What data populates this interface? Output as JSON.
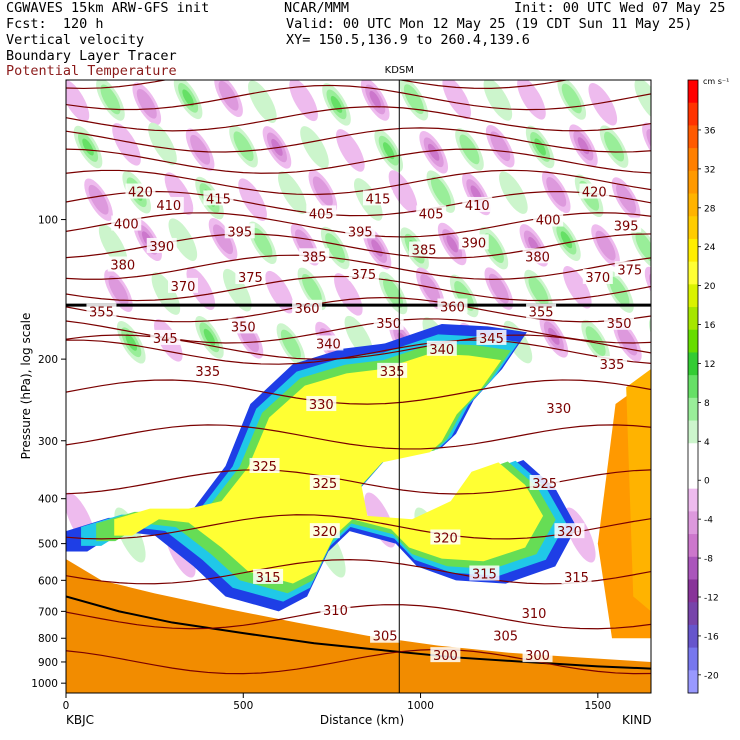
{
  "header": {
    "line1_left": "CGWAVES 15km ARW-GFS init",
    "line1_mid": "NCAR/MMM",
    "line1_right": "Init: 00 UTC Wed 07 May 25",
    "line2_left": "Fcst:  120 h",
    "line2_right": "Valid: 00 UTC Mon 12 May 25 (19 CDT Sun 11 May 25)",
    "line3_left": "Vertical velocity",
    "line3_right": "XY= 150.5,136.9 to 260.4,139.6",
    "line4_left": "Boundary Layer Tracer",
    "line5_left": "Potential Temperature"
  },
  "colors": {
    "theta_title": "#8b1a1a",
    "theta_contour": "#7a0000",
    "tropopause": "#000000",
    "terrain": "#f28c00",
    "terrain_edge": "#000000"
  },
  "chart_data": {
    "type": "cross-section",
    "xlabel": "Distance (km)",
    "ylabel": "Pressure (hPa), log scale",
    "xlim": [
      0,
      1650
    ],
    "ylim": [
      1050,
      50
    ],
    "y_scale": "log",
    "x_ticks": [
      "0",
      "500",
      "1000",
      "1500"
    ],
    "x_tick_values": [
      0,
      500,
      1000,
      1500
    ],
    "y_ticks": [
      "100",
      "200",
      "300",
      "400",
      "500",
      "600",
      "700",
      "800",
      "900",
      "1000"
    ],
    "y_tick_values": [
      100,
      200,
      300,
      400,
      500,
      600,
      700,
      800,
      900,
      1000
    ],
    "left_station": "KBJC",
    "right_station": "KIND",
    "mid_station": "KDSM",
    "mid_station_km": 940,
    "colorbar": {
      "unit": "cm s⁻¹",
      "labels": [
        "36",
        "32",
        "28",
        "24",
        "20",
        "16",
        "12",
        "8",
        "4",
        "0",
        "-4",
        "-8",
        "-12",
        "-16",
        "-20"
      ],
      "colors": [
        "#ff0000",
        "#ff3300",
        "#ff5a00",
        "#ff7f00",
        "#ff9900",
        "#ffb300",
        "#ffcc00",
        "#ffee00",
        "#ffff33",
        "#d9f200",
        "#a6e600",
        "#66dd00",
        "#33cc33",
        "#66e066",
        "#99ee99",
        "#ccf5cc",
        "#ffffff",
        "#ffffff",
        "#eebbee",
        "#dd99dd",
        "#cc77cc",
        "#aa55bb",
        "#883399",
        "#7744aa",
        "#6655cc",
        "#7777ee",
        "#9999ff"
      ]
    },
    "theta_labels": [
      {
        "text": "420",
        "x": 210,
        "p": 87
      },
      {
        "text": "410",
        "x": 290,
        "p": 93
      },
      {
        "text": "415",
        "x": 430,
        "p": 90
      },
      {
        "text": "405",
        "x": 720,
        "p": 97
      },
      {
        "text": "415",
        "x": 880,
        "p": 90
      },
      {
        "text": "405",
        "x": 1030,
        "p": 97
      },
      {
        "text": "410",
        "x": 1160,
        "p": 93
      },
      {
        "text": "400",
        "x": 1360,
        "p": 100
      },
      {
        "text": "420",
        "x": 1490,
        "p": 87
      },
      {
        "text": "395",
        "x": 1580,
        "p": 103
      },
      {
        "text": "400",
        "x": 170,
        "p": 102
      },
      {
        "text": "395",
        "x": 490,
        "p": 106
      },
      {
        "text": "395",
        "x": 830,
        "p": 106
      },
      {
        "text": "390",
        "x": 270,
        "p": 114
      },
      {
        "text": "385",
        "x": 700,
        "p": 120
      },
      {
        "text": "385",
        "x": 1010,
        "p": 116
      },
      {
        "text": "390",
        "x": 1150,
        "p": 112
      },
      {
        "text": "380",
        "x": 1330,
        "p": 120
      },
      {
        "text": "380",
        "x": 160,
        "p": 125
      },
      {
        "text": "375",
        "x": 520,
        "p": 133
      },
      {
        "text": "375",
        "x": 840,
        "p": 131
      },
      {
        "text": "370",
        "x": 1500,
        "p": 133
      },
      {
        "text": "375",
        "x": 1590,
        "p": 128
      },
      {
        "text": "370",
        "x": 330,
        "p": 139
      },
      {
        "text": "355",
        "x": 100,
        "p": 158
      },
      {
        "text": "360",
        "x": 680,
        "p": 155
      },
      {
        "text": "360",
        "x": 1090,
        "p": 154
      },
      {
        "text": "350",
        "x": 500,
        "p": 170
      },
      {
        "text": "350",
        "x": 910,
        "p": 167
      },
      {
        "text": "345",
        "x": 280,
        "p": 180
      },
      {
        "text": "355",
        "x": 1340,
        "p": 158
      },
      {
        "text": "350",
        "x": 1560,
        "p": 167
      },
      {
        "text": "340",
        "x": 740,
        "p": 185
      },
      {
        "text": "340",
        "x": 1060,
        "p": 190
      },
      {
        "text": "345",
        "x": 1200,
        "p": 180
      },
      {
        "text": "335",
        "x": 400,
        "p": 212
      },
      {
        "text": "335",
        "x": 920,
        "p": 212
      },
      {
        "text": "335",
        "x": 1540,
        "p": 205
      },
      {
        "text": "330",
        "x": 720,
        "p": 250
      },
      {
        "text": "330",
        "x": 1390,
        "p": 255
      },
      {
        "text": "325",
        "x": 560,
        "p": 340
      },
      {
        "text": "325",
        "x": 730,
        "p": 370
      },
      {
        "text": "325",
        "x": 1350,
        "p": 370
      },
      {
        "text": "320",
        "x": 730,
        "p": 470
      },
      {
        "text": "320",
        "x": 1070,
        "p": 485
      },
      {
        "text": "320",
        "x": 1420,
        "p": 470
      },
      {
        "text": "315",
        "x": 570,
        "p": 590
      },
      {
        "text": "315",
        "x": 1180,
        "p": 580
      },
      {
        "text": "315",
        "x": 1440,
        "p": 590
      },
      {
        "text": "310",
        "x": 760,
        "p": 695
      },
      {
        "text": "310",
        "x": 1320,
        "p": 705
      },
      {
        "text": "305",
        "x": 900,
        "p": 790
      },
      {
        "text": "305",
        "x": 1240,
        "p": 790
      },
      {
        "text": "300",
        "x": 1070,
        "p": 870
      },
      {
        "text": "300",
        "x": 1330,
        "p": 870
      }
    ]
  }
}
